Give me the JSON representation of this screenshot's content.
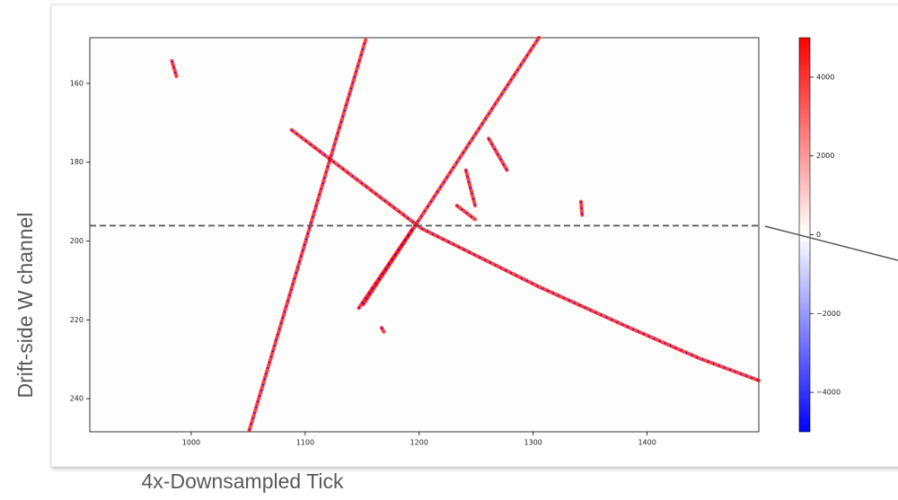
{
  "chart_data": {
    "type": "heatmap-tracks",
    "xlabel": "4x-Downsampled Tick",
    "ylabel": "Drift-side W channel",
    "xlim": [
      911,
      1498
    ],
    "xticks": [
      1000,
      1100,
      1200,
      1300,
      1400
    ],
    "ylim": [
      248.4,
      148.4
    ],
    "yticks": [
      160,
      180,
      200,
      220,
      240
    ],
    "hline": 196.1,
    "colormap": [
      "#0000ff",
      "#ffffff",
      "#ff0000"
    ],
    "clim": [
      -5000,
      5000
    ],
    "cticks": [
      {
        "value": -4000,
        "label": "−4000"
      },
      {
        "value": -2000,
        "label": "−2000"
      },
      0,
      2000,
      4000
    ],
    "tracks": [
      {
        "x": [
          1051,
          1153
        ],
        "y": [
          248,
          149
        ]
      },
      {
        "x": [
          1151,
          1305
        ],
        "y": [
          216.1,
          148.4
        ]
      },
      {
        "x": [
          1088,
          1202,
          1305,
          1383,
          1446,
          1498
        ],
        "y": [
          171.8,
          196.8,
          211.6,
          221.8,
          229.8,
          235.4
        ]
      },
      {
        "x": [
          1147,
          1194
        ],
        "y": [
          217,
          197
        ]
      },
      {
        "x": [
          983,
          987
        ],
        "y": [
          154.3,
          158.2
        ]
      },
      {
        "x": [
          1261,
          1277
        ],
        "y": [
          174,
          182
        ]
      },
      {
        "x": [
          1241,
          1249
        ],
        "y": [
          182,
          191
        ]
      },
      {
        "x": [
          1233,
          1249
        ],
        "y": [
          191,
          194.5
        ]
      },
      {
        "x": [
          1342,
          1343
        ],
        "y": [
          190,
          193.4
        ]
      },
      {
        "x": [
          1167,
          1169
        ],
        "y": [
          222,
          223
        ]
      }
    ]
  }
}
